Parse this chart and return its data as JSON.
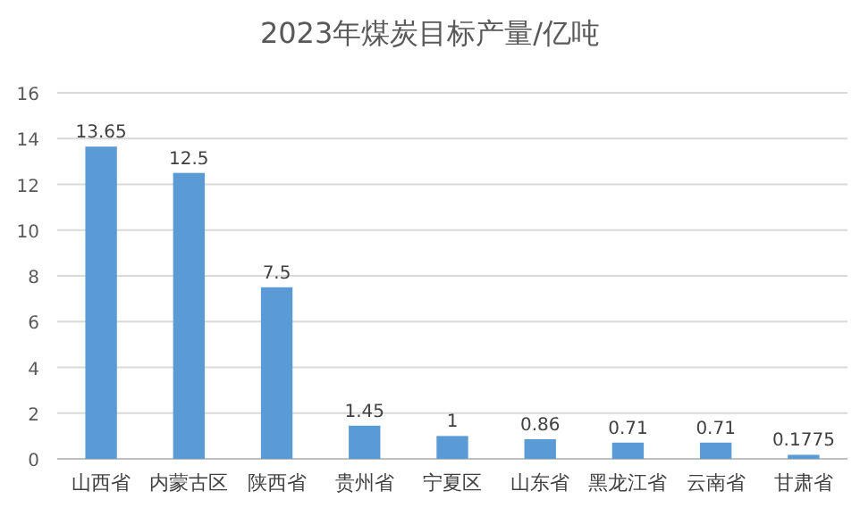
{
  "chart_data": {
    "type": "bar",
    "title": "2023年煤炭目标产量/亿吨",
    "categories": [
      "山西省",
      "内蒙古区",
      "陕西省",
      "贵州省",
      "宁夏区",
      "山东省",
      "黑龙江省",
      "云南省",
      "甘肃省"
    ],
    "values": [
      13.65,
      12.5,
      7.5,
      1.45,
      1,
      0.86,
      0.71,
      0.71,
      0.1775
    ],
    "color": "#5b9bd5",
    "ylim": [
      0,
      16
    ],
    "yticks": [
      0,
      2,
      4,
      6,
      8,
      10,
      12,
      14,
      16
    ],
    "grid": "y",
    "data_labels": true
  }
}
